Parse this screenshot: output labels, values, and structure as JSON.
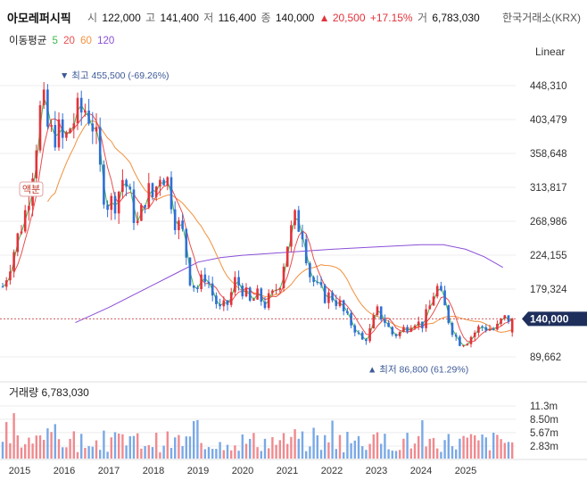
{
  "header": {
    "stock_name": "아모레퍼시픽",
    "open_label": "시",
    "open": "122,000",
    "high_label": "고",
    "high": "141,400",
    "low_label": "저",
    "low": "116,400",
    "close_label": "종",
    "close": "140,000",
    "change": "▲ 20,500",
    "change_pct": "+17.15%",
    "volume_label": "거",
    "volume": "6,783,030",
    "exchange": "한국거래소(KRX)"
  },
  "ma_legend": {
    "label": "이동평균",
    "periods": [
      "5",
      "20",
      "60",
      "120"
    ],
    "colors": [
      "#3eb84a",
      "#e84d4d",
      "#f2913d",
      "#8a4fd8"
    ]
  },
  "scale_button": "Linear",
  "colors": {
    "up": "#e2333b",
    "down": "#2f6fd6",
    "grid": "#ececec",
    "current_price_bg": "#1e2f5c",
    "vol_up": "#f08a8f",
    "vol_down": "#7aa9e6"
  },
  "chart_data": [
    {
      "type": "candlestick",
      "title": "",
      "ylim": [
        60000,
        480000
      ],
      "y_ticks": [
        "448,310",
        "403,479",
        "358,648",
        "313,817",
        "268,986",
        "224,155",
        "179,324",
        "89,662"
      ],
      "y_tick_values": [
        448310,
        403479,
        358648,
        313817,
        268986,
        224155,
        179324,
        89662
      ],
      "x_ticks": [
        "2015",
        "2016",
        "2017",
        "2018",
        "2019",
        "2020",
        "2021",
        "2022",
        "2023",
        "2024",
        "2025"
      ],
      "current_price": "140,000",
      "current_price_value": 140000,
      "max_annotation": "▼ 최고 455,500 (-69.26%)",
      "max_value": 455500,
      "min_annotation": "▲ 최저 86,800 (61.29%)",
      "min_value": 86800,
      "split_annotation": "액분",
      "price_path": [
        [
          "2014-06",
          150000
        ],
        [
          "2014-09",
          190000
        ],
        [
          "2014-12",
          240000
        ],
        [
          "2015-03",
          290000
        ],
        [
          "2015-05",
          360000
        ],
        [
          "2015-07",
          430000
        ],
        [
          "2015-09",
          380000
        ],
        [
          "2015-11",
          390000
        ],
        [
          "2016-01",
          370000
        ],
        [
          "2016-03",
          400000
        ],
        [
          "2016-05",
          410000
        ],
        [
          "2016-07",
          420000
        ],
        [
          "2016-09",
          395000
        ],
        [
          "2016-11",
          320000
        ],
        [
          "2017-01",
          290000
        ],
        [
          "2017-03",
          300000
        ],
        [
          "2017-05",
          330000
        ],
        [
          "2017-07",
          290000
        ],
        [
          "2017-09",
          260000
        ],
        [
          "2017-11",
          310000
        ],
        [
          "2018-01",
          300000
        ],
        [
          "2018-03",
          340000
        ],
        [
          "2018-05",
          320000
        ],
        [
          "2018-07",
          270000
        ],
        [
          "2018-09",
          250000
        ],
        [
          "2018-11",
          190000
        ],
        [
          "2019-01",
          180000
        ],
        [
          "2019-03",
          200000
        ],
        [
          "2019-05",
          170000
        ],
        [
          "2019-07",
          150000
        ],
        [
          "2019-09",
          160000
        ],
        [
          "2019-11",
          190000
        ],
        [
          "2020-01",
          180000
        ],
        [
          "2020-03",
          160000
        ],
        [
          "2020-05",
          170000
        ],
        [
          "2020-07",
          160000
        ],
        [
          "2020-09",
          170000
        ],
        [
          "2020-11",
          190000
        ],
        [
          "2021-01",
          240000
        ],
        [
          "2021-03",
          270000
        ],
        [
          "2021-05",
          260000
        ],
        [
          "2021-07",
          200000
        ],
        [
          "2021-09",
          180000
        ],
        [
          "2021-11",
          170000
        ],
        [
          "2022-01",
          170000
        ],
        [
          "2022-03",
          160000
        ],
        [
          "2022-05",
          140000
        ],
        [
          "2022-07",
          130000
        ],
        [
          "2022-09",
          110000
        ],
        [
          "2022-11",
          120000
        ],
        [
          "2023-01",
          150000
        ],
        [
          "2023-03",
          140000
        ],
        [
          "2023-05",
          120000
        ],
        [
          "2023-07",
          120000
        ],
        [
          "2023-09",
          130000
        ],
        [
          "2023-11",
          140000
        ],
        [
          "2024-01",
          130000
        ],
        [
          "2024-03",
          150000
        ],
        [
          "2024-05",
          185000
        ],
        [
          "2024-07",
          160000
        ],
        [
          "2024-09",
          130000
        ],
        [
          "2024-11",
          110000
        ],
        [
          "2025-01",
          110000
        ],
        [
          "2025-03",
          120000
        ],
        [
          "2025-05",
          130000
        ],
        [
          "2025-07",
          128000
        ],
        [
          "2025-09",
          125000
        ],
        [
          "2025-11",
          140000
        ]
      ],
      "ma120_path": [
        [
          "2016-04",
          135000
        ],
        [
          "2017-01",
          155000
        ],
        [
          "2018-01",
          185000
        ],
        [
          "2018-07",
          200000
        ],
        [
          "2019-01",
          215000
        ],
        [
          "2019-07",
          221000
        ],
        [
          "2020-01",
          224000
        ],
        [
          "2021-01",
          228000
        ],
        [
          "2022-01",
          232000
        ],
        [
          "2023-01",
          235000
        ],
        [
          "2024-01",
          238000
        ],
        [
          "2024-07",
          238000
        ],
        [
          "2025-01",
          232000
        ],
        [
          "2025-06",
          222000
        ],
        [
          "2025-11",
          208000
        ]
      ]
    },
    {
      "type": "bar",
      "title": "거래량",
      "latest_volume": "6,783,030",
      "ylim": [
        0,
        13000000
      ],
      "y_ticks": [
        "11.3m",
        "8.50m",
        "5.67m",
        "2.83m"
      ],
      "y_tick_values": [
        11300000,
        8500000,
        5670000,
        2830000
      ],
      "x_ticks": [
        "2015",
        "2016",
        "2017",
        "2018",
        "2019",
        "2020",
        "2021",
        "2022",
        "2023",
        "2024",
        "2025"
      ]
    }
  ]
}
